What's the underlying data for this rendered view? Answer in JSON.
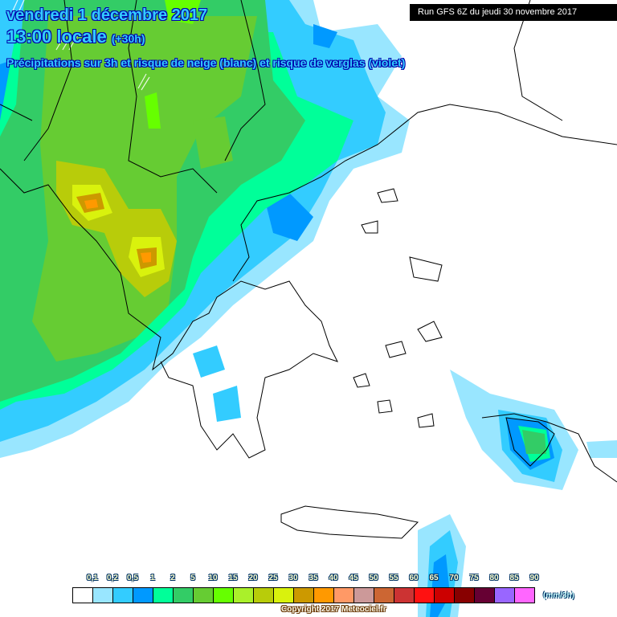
{
  "header": {
    "date": "vendredi 1 décembre 2017",
    "time": "13:00 locale",
    "lead": "(+30h)",
    "subtitle": "Précipitations sur 3h et risque de neige (blanc) et risque de verglas (violet)",
    "run": "Run GFS 6Z du jeudi 30 novembre 2017"
  },
  "legend": {
    "ticks": [
      "0,1",
      "0,2",
      "0,5",
      "1",
      "2",
      "5",
      "10",
      "15",
      "20",
      "25",
      "30",
      "35",
      "40",
      "45",
      "50",
      "55",
      "60",
      "65",
      "70",
      "75",
      "80",
      "85",
      "90"
    ],
    "colors": [
      "#ffffff",
      "#99e6ff",
      "#33ccff",
      "#0099ff",
      "#00ff99",
      "#33cc66",
      "#66cc33",
      "#66ff00",
      "#aaf02a",
      "#b8cc0a",
      "#d9f20d",
      "#cc9900",
      "#ff9900",
      "#ff9966",
      "#cc9999",
      "#cc6633",
      "#cc3333",
      "#ff1111",
      "#cc0000",
      "#880000",
      "#660033",
      "#9966ff",
      "#ff66ff"
    ],
    "unit": "(mm/3h)"
  },
  "footer": {
    "copyright": "Copyright 2017 Meteociel.fr"
  }
}
